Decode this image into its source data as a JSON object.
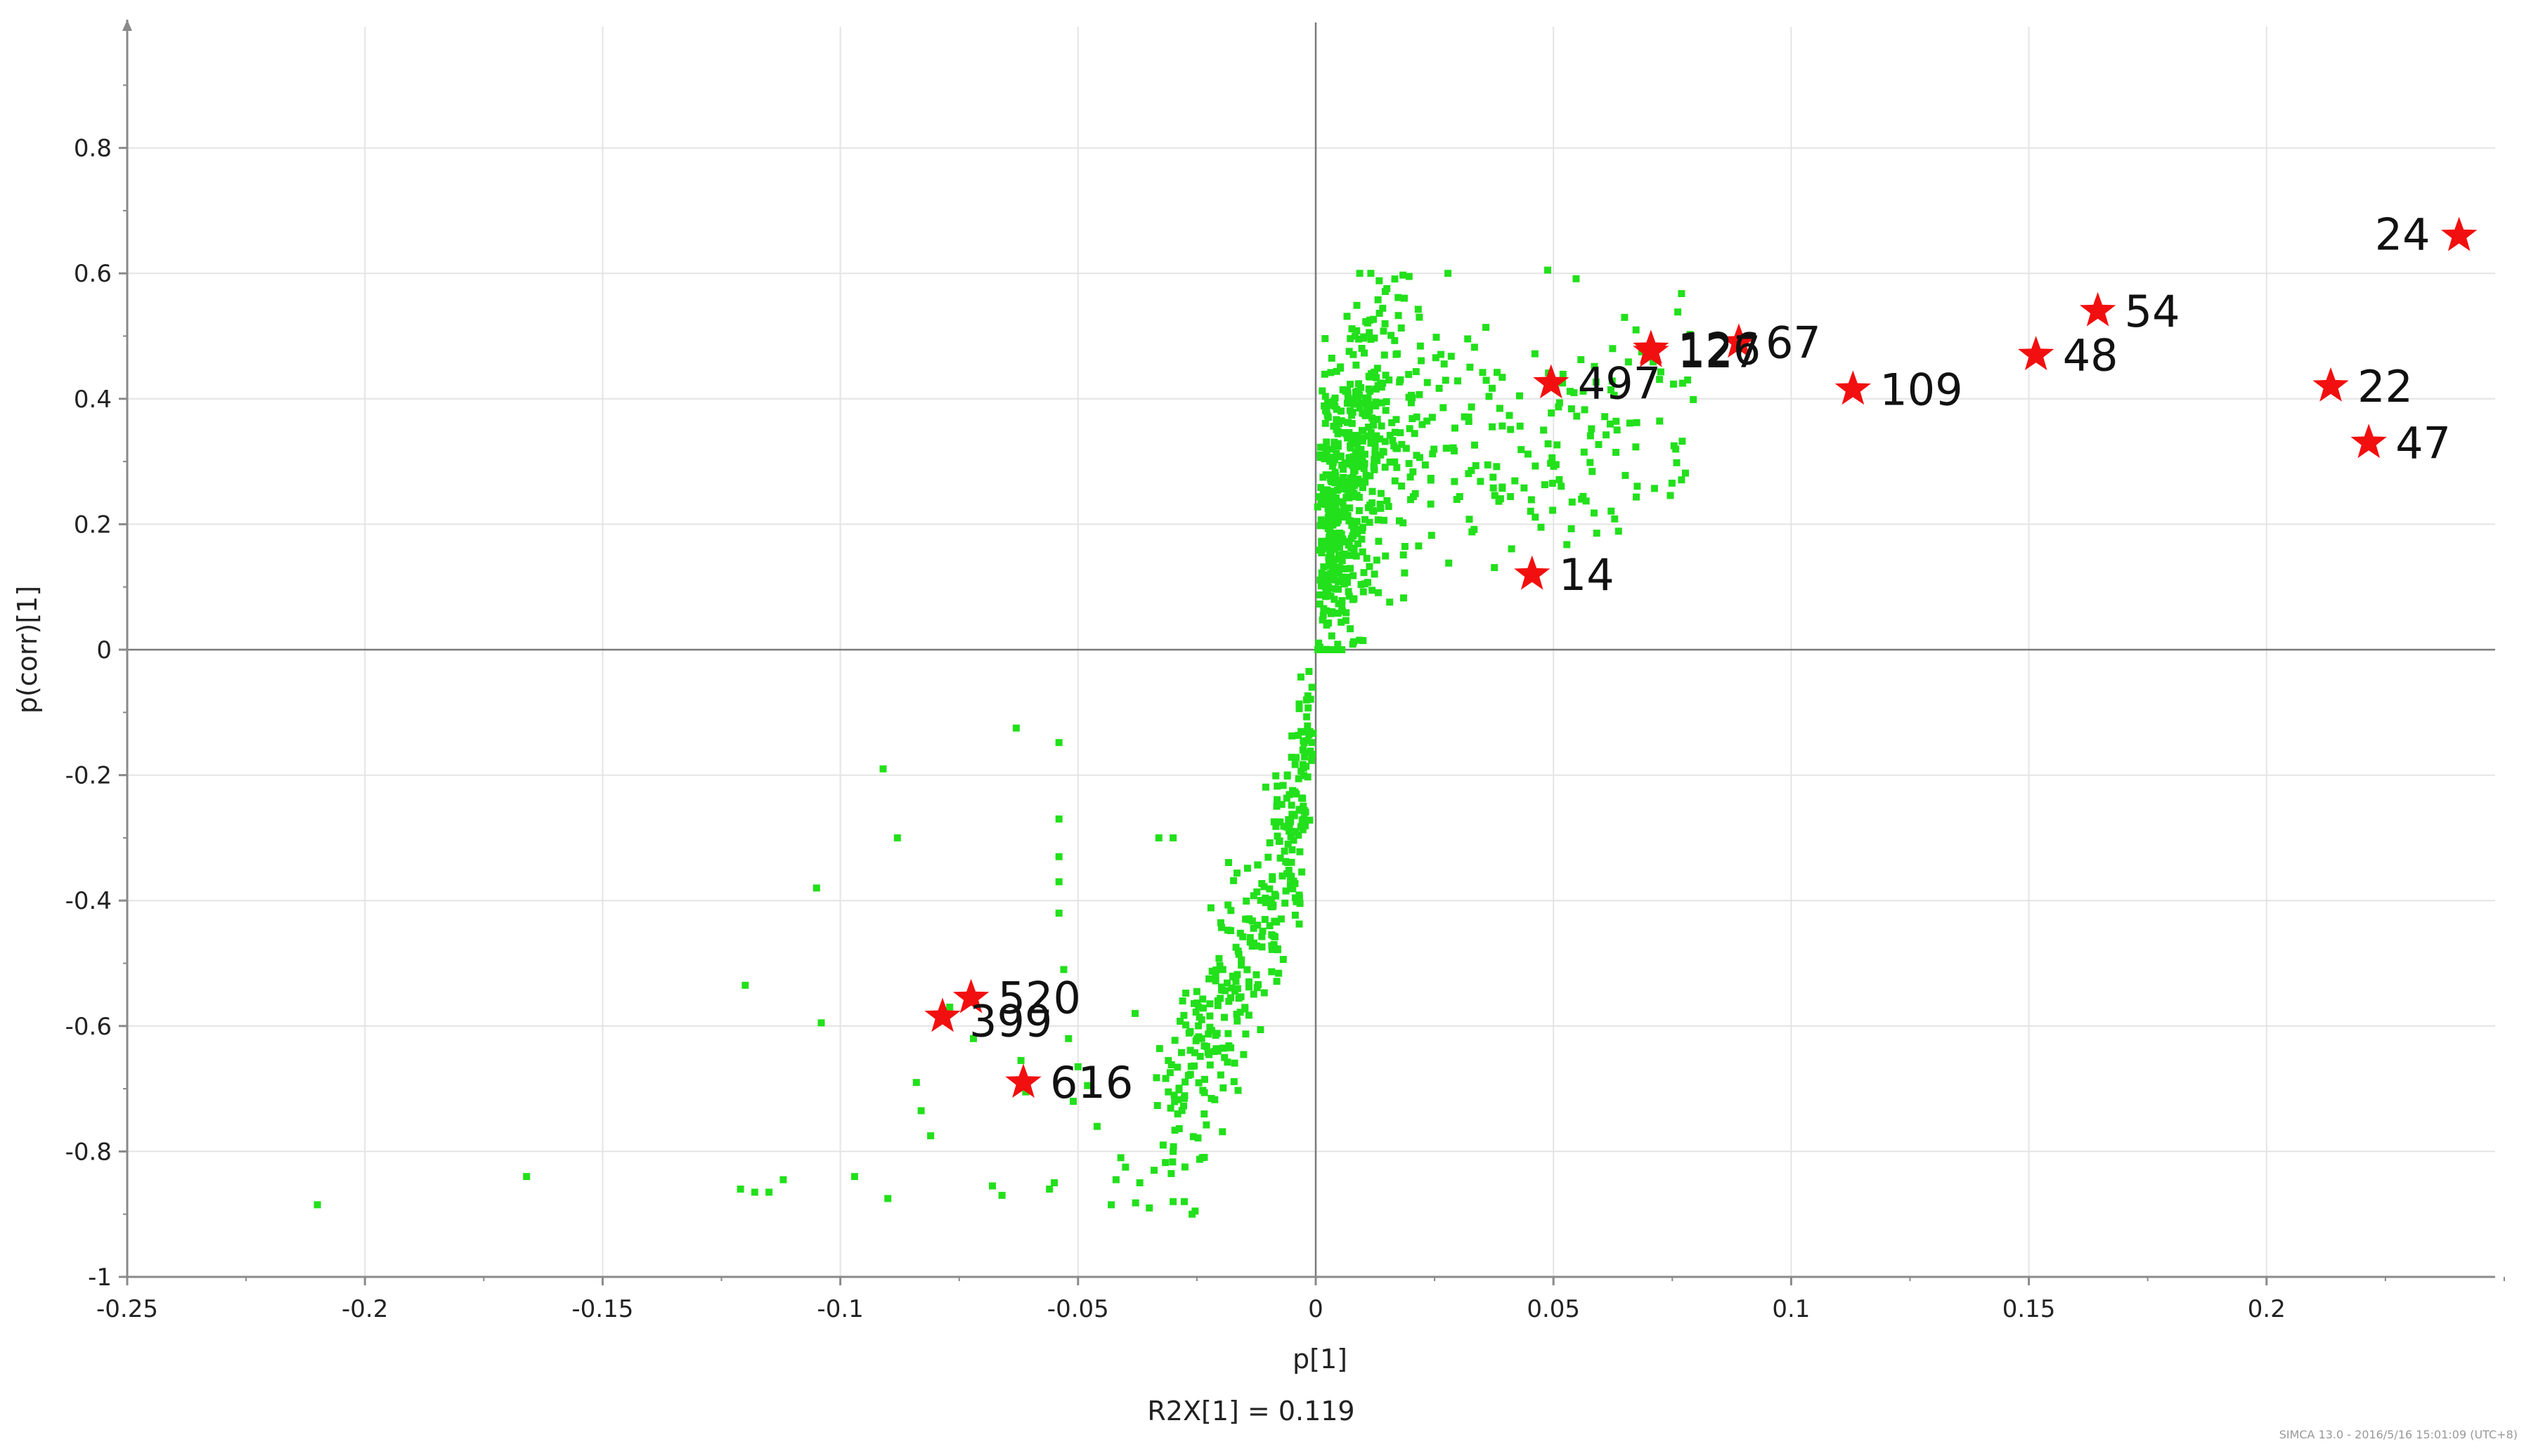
{
  "chart_data": {
    "type": "scatter",
    "title": "",
    "xlabel": "p[1]",
    "ylabel": "p(corr)[1]",
    "subtitle": "R2X[1] = 0.119",
    "xlim": [
      -0.25,
      0.25
    ],
    "ylim": [
      -1,
      1
    ],
    "xticks": [
      -0.25,
      -0.2,
      -0.15,
      -0.1,
      -0.05,
      0,
      0.05,
      0.1,
      0.15,
      0.2
    ],
    "yticks": [
      -1,
      -0.8,
      -0.6,
      -0.4,
      -0.2,
      0,
      0.2,
      0.4,
      0.6,
      0.8
    ],
    "grid": true,
    "colors": {
      "points": "#22e01b",
      "highlight": "#f20f0f"
    },
    "highlighted": [
      {
        "label": "24",
        "x": 0.2405,
        "y": 0.66
      },
      {
        "label": "54",
        "x": 0.1645,
        "y": 0.54
      },
      {
        "label": "48",
        "x": 0.1515,
        "y": 0.47
      },
      {
        "label": "22",
        "x": 0.2135,
        "y": 0.42
      },
      {
        "label": "47",
        "x": 0.2215,
        "y": 0.33
      },
      {
        "label": "109",
        "x": 0.113,
        "y": 0.415
      },
      {
        "label": "67",
        "x": 0.089,
        "y": 0.49
      },
      {
        "label": "126",
        "x": 0.0705,
        "y": 0.48
      },
      {
        "label": "127",
        "x": 0.0705,
        "y": 0.475
      },
      {
        "label": "497",
        "x": 0.0495,
        "y": 0.425
      },
      {
        "label": "14",
        "x": 0.0455,
        "y": 0.12
      },
      {
        "label": "520",
        "x": -0.0725,
        "y": -0.555
      },
      {
        "label": "399",
        "x": -0.0785,
        "y": -0.585
      },
      {
        "label": "616",
        "x": -0.0615,
        "y": -0.69
      }
    ],
    "scatter_outliers": [
      [
        -0.21,
        -0.885
      ],
      [
        -0.166,
        -0.84
      ],
      [
        -0.12,
        -0.535
      ],
      [
        -0.121,
        -0.86
      ],
      [
        -0.118,
        -0.865
      ],
      [
        -0.115,
        -0.865
      ],
      [
        -0.112,
        -0.845
      ],
      [
        -0.105,
        -0.38
      ],
      [
        -0.104,
        -0.595
      ],
      [
        -0.097,
        -0.84
      ],
      [
        -0.091,
        -0.19
      ],
      [
        -0.09,
        -0.875
      ],
      [
        -0.088,
        -0.3
      ],
      [
        -0.084,
        -0.69
      ],
      [
        -0.083,
        -0.735
      ],
      [
        -0.081,
        -0.775
      ],
      [
        -0.077,
        -0.57
      ],
      [
        -0.072,
        -0.62
      ],
      [
        -0.068,
        -0.855
      ],
      [
        -0.066,
        -0.87
      ],
      [
        -0.063,
        -0.125
      ],
      [
        -0.062,
        -0.655
      ],
      [
        -0.061,
        -0.705
      ],
      [
        -0.056,
        -0.86
      ],
      [
        -0.055,
        -0.85
      ],
      [
        -0.054,
        -0.148
      ],
      [
        -0.054,
        -0.27
      ],
      [
        -0.054,
        -0.33
      ],
      [
        -0.054,
        -0.37
      ],
      [
        -0.054,
        -0.42
      ],
      [
        -0.053,
        -0.51
      ],
      [
        -0.052,
        -0.62
      ],
      [
        -0.051,
        -0.72
      ],
      [
        -0.05,
        -0.665
      ],
      [
        -0.048,
        -0.695
      ],
      [
        -0.046,
        -0.76
      ],
      [
        -0.043,
        -0.885
      ],
      [
        -0.042,
        -0.845
      ],
      [
        -0.041,
        -0.81
      ],
      [
        -0.04,
        -0.825
      ],
      [
        -0.038,
        -0.58
      ],
      [
        -0.037,
        -0.85
      ],
      [
        -0.035,
        -0.89
      ],
      [
        -0.034,
        -0.83
      ],
      [
        -0.033,
        -0.3
      ],
      [
        -0.031,
        -0.655
      ],
      [
        -0.031,
        -0.705
      ],
      [
        -0.03,
        -0.3
      ],
      [
        -0.03,
        -0.8
      ],
      [
        -0.03,
        -0.88
      ],
      [
        -0.028,
        -0.56
      ],
      [
        -0.026,
        -0.9
      ],
      [
        -0.025,
        -0.545
      ],
      [
        -0.024,
        -0.59
      ],
      [
        -0.024,
        -0.62
      ]
    ]
  },
  "footer": {
    "stamp": "SIMCA 13.0 - 2016/5/16 15:01:09 (UTC+8)"
  }
}
